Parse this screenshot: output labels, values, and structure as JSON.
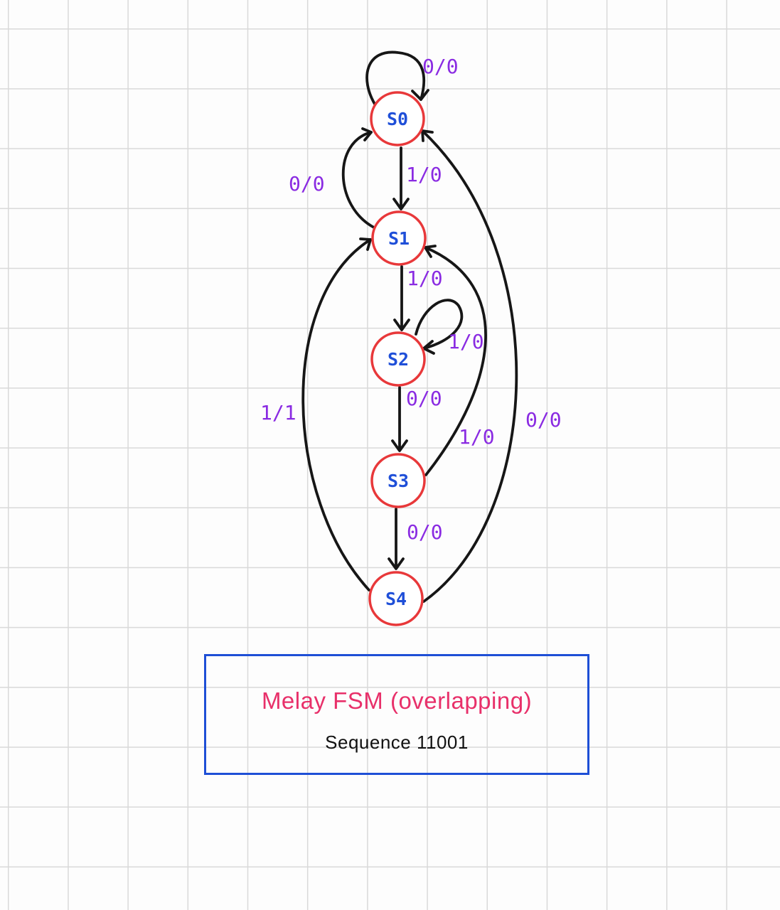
{
  "diagram": {
    "states": [
      {
        "id": "s0",
        "label": "S0"
      },
      {
        "id": "s1",
        "label": "S1"
      },
      {
        "id": "s2",
        "label": "S2"
      },
      {
        "id": "s3",
        "label": "S3"
      },
      {
        "id": "s4",
        "label": "S4"
      }
    ],
    "transitions": [
      {
        "from": "S0",
        "to": "S0",
        "label": "0/0"
      },
      {
        "from": "S0",
        "to": "S1",
        "label": "1/0"
      },
      {
        "from": "S1",
        "to": "S0",
        "label": "0/0"
      },
      {
        "from": "S1",
        "to": "S2",
        "label": "1/0"
      },
      {
        "from": "S2",
        "to": "S2",
        "label": "1/0"
      },
      {
        "from": "S2",
        "to": "S3",
        "label": "0/0"
      },
      {
        "from": "S3",
        "to": "S1",
        "label": "1/0"
      },
      {
        "from": "S3",
        "to": "S4",
        "label": "0/0"
      },
      {
        "from": "S4",
        "to": "S1",
        "label": "1/1"
      },
      {
        "from": "S4",
        "to": "S0",
        "label": "0/0"
      }
    ],
    "colors": {
      "state_border": "#e8383a",
      "state_label": "#1f4fd8",
      "edge": "#161616",
      "edge_label": "#8a2be2",
      "title": "#e8306a",
      "box_border": "#1e4fd6",
      "grid": "#d9d9d9"
    }
  },
  "caption": {
    "title": "Melay FSM (overlapping)",
    "subtitle": "Sequence 11001"
  }
}
